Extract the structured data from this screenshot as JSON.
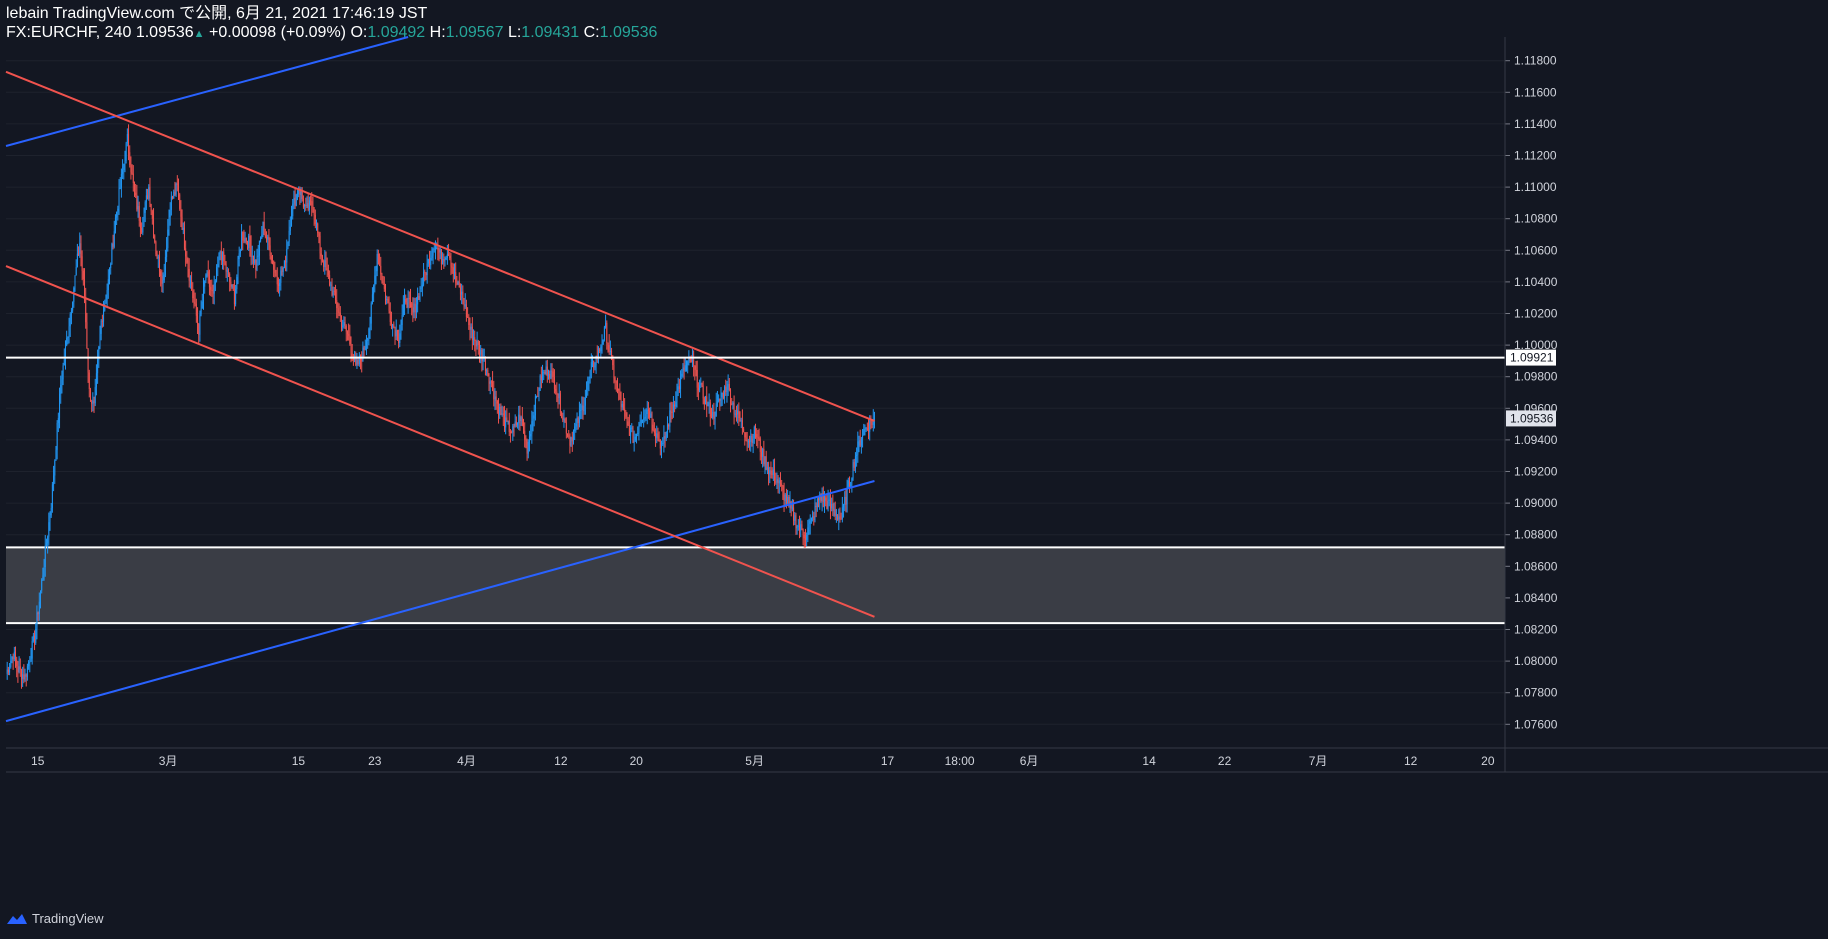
{
  "header": {
    "line1": "lebain TradingView.com で公開, 6月 21, 2021 17:46:19 JST",
    "symbol": "FX:EURCHF, 240",
    "price": "1.09536",
    "change": "+0.00098 (+0.09%)",
    "o_label": "O:",
    "o_val": "1.09492",
    "h_label": "H:",
    "h_val": "1.09567",
    "l_label": "L:",
    "l_val": "1.09431",
    "c_label": "C:",
    "c_val": "1.09536"
  },
  "footer": {
    "brand": "TradingView",
    "logo_icon": "tradingview-logo-icon"
  },
  "colors": {
    "background": "#131722",
    "up": "#2196f3",
    "down": "#ef5350",
    "blue_line": "#2962ff",
    "red_line": "#f0534e",
    "grid": "#1e222d"
  },
  "chart_data": {
    "type": "candlestick",
    "symbol": "FX:EURCHF",
    "interval": "240",
    "ylim": [
      1.0745,
      1.1195
    ],
    "x_ticks": [
      "15",
      "3月",
      "15",
      "23",
      "4月",
      "12",
      "20",
      "5月",
      "17",
      "18:00",
      "6月",
      "14",
      "22",
      "7月",
      "12",
      "20"
    ],
    "y_ticks": [
      "1.11800",
      "1.11600",
      "1.11400",
      "1.11200",
      "1.11000",
      "1.10800",
      "1.10600",
      "1.10400",
      "1.10200",
      "1.10000",
      "1.09800",
      "1.09600",
      "1.09400",
      "1.09200",
      "1.09000",
      "1.08800",
      "1.08600",
      "1.08400",
      "1.08200",
      "1.08000",
      "1.07800",
      "1.07600"
    ],
    "price_labels": [
      {
        "text": "1.09921",
        "value": 1.09921,
        "style": "white"
      },
      {
        "text": "1.09536",
        "value": 1.09536,
        "style": "last"
      }
    ],
    "path_points": [
      [
        0,
        1.0792
      ],
      [
        6,
        1.0805
      ],
      [
        10,
        1.0795
      ],
      [
        16,
        1.079
      ],
      [
        24,
        1.0815
      ],
      [
        30,
        1.085
      ],
      [
        38,
        1.09
      ],
      [
        46,
        1.0975
      ],
      [
        54,
        1.102
      ],
      [
        62,
        1.1065
      ],
      [
        66,
        1.103
      ],
      [
        70,
        1.097
      ],
      [
        74,
        1.096
      ],
      [
        80,
        1.1015
      ],
      [
        86,
        1.104
      ],
      [
        92,
        1.108
      ],
      [
        98,
        1.111
      ],
      [
        102,
        1.113
      ],
      [
        108,
        1.1095
      ],
      [
        114,
        1.1075
      ],
      [
        120,
        1.11
      ],
      [
        126,
        1.106
      ],
      [
        132,
        1.104
      ],
      [
        138,
        1.109
      ],
      [
        144,
        1.11
      ],
      [
        150,
        1.1065
      ],
      [
        156,
        1.1035
      ],
      [
        162,
        1.101
      ],
      [
        168,
        1.1045
      ],
      [
        174,
        1.103
      ],
      [
        180,
        1.106
      ],
      [
        186,
        1.1045
      ],
      [
        192,
        1.103
      ],
      [
        198,
        1.107
      ],
      [
        204,
        1.1065
      ],
      [
        210,
        1.105
      ],
      [
        216,
        1.1075
      ],
      [
        222,
        1.106
      ],
      [
        228,
        1.104
      ],
      [
        234,
        1.105
      ],
      [
        240,
        1.1085
      ],
      [
        246,
        1.11
      ],
      [
        252,
        1.1085
      ],
      [
        258,
        1.109
      ],
      [
        264,
        1.106
      ],
      [
        270,
        1.1045
      ],
      [
        276,
        1.103
      ],
      [
        282,
        1.1015
      ],
      [
        288,
        1.1005
      ],
      [
        294,
        1.0985
      ],
      [
        300,
        1.0995
      ],
      [
        306,
        1.1015
      ],
      [
        312,
        1.1058
      ],
      [
        318,
        1.1035
      ],
      [
        324,
        1.1015
      ],
      [
        330,
        1.1005
      ],
      [
        336,
        1.103
      ],
      [
        342,
        1.102
      ],
      [
        348,
        1.1035
      ],
      [
        354,
        1.105
      ],
      [
        360,
        1.1065
      ],
      [
        366,
        1.1055
      ],
      [
        372,
        1.106
      ],
      [
        378,
        1.104
      ],
      [
        384,
        1.103
      ],
      [
        390,
        1.101
      ],
      [
        396,
        1.1
      ],
      [
        402,
        1.099
      ],
      [
        408,
        1.0975
      ],
      [
        414,
        1.096
      ],
      [
        420,
        1.095
      ],
      [
        426,
        1.0945
      ],
      [
        432,
        1.0955
      ],
      [
        438,
        1.0935
      ],
      [
        444,
        1.096
      ],
      [
        450,
        1.098
      ],
      [
        456,
        1.0985
      ],
      [
        462,
        1.0975
      ],
      [
        468,
        1.0955
      ],
      [
        474,
        1.094
      ],
      [
        480,
        1.095
      ],
      [
        486,
        1.0965
      ],
      [
        492,
        1.0985
      ],
      [
        498,
        1.0995
      ],
      [
        504,
        1.101
      ],
      [
        510,
        1.0985
      ],
      [
        516,
        1.0965
      ],
      [
        522,
        1.095
      ],
      [
        528,
        1.094
      ],
      [
        534,
        1.0955
      ],
      [
        540,
        1.096
      ],
      [
        546,
        1.0945
      ],
      [
        552,
        1.0935
      ],
      [
        558,
        1.0955
      ],
      [
        564,
        1.097
      ],
      [
        570,
        1.0985
      ],
      [
        576,
        1.099
      ],
      [
        582,
        1.0975
      ],
      [
        588,
        1.0965
      ],
      [
        594,
        1.0955
      ],
      [
        600,
        1.0965
      ],
      [
        606,
        1.0975
      ],
      [
        612,
        1.096
      ],
      [
        618,
        1.095
      ],
      [
        624,
        1.094
      ],
      [
        630,
        1.0945
      ],
      [
        636,
        1.093
      ],
      [
        642,
        1.092
      ],
      [
        648,
        1.0915
      ],
      [
        654,
        1.0905
      ],
      [
        660,
        1.0895
      ],
      [
        666,
        1.0885
      ],
      [
        672,
        1.088
      ],
      [
        678,
        1.089
      ],
      [
        684,
        1.0905
      ],
      [
        690,
        1.09
      ],
      [
        696,
        1.0895
      ],
      [
        702,
        1.089
      ],
      [
        708,
        1.091
      ],
      [
        714,
        1.093
      ],
      [
        720,
        1.0945
      ],
      [
        726,
        1.095
      ],
      [
        730,
        1.09536
      ]
    ],
    "drawings": [
      {
        "kind": "trendline",
        "color": "blue",
        "from": [
          0,
          1.1126
        ],
        "to": [
          338,
          1.1195
        ]
      },
      {
        "kind": "trendline",
        "color": "blue",
        "from": [
          0,
          1.0762
        ],
        "to": [
          730,
          1.0914
        ]
      },
      {
        "kind": "trendline",
        "color": "red",
        "from": [
          0,
          1.1173
        ],
        "to": [
          730,
          1.0952
        ]
      },
      {
        "kind": "trendline",
        "color": "red",
        "from": [
          0,
          1.105
        ],
        "to": [
          730,
          1.0828
        ]
      },
      {
        "kind": "horizontal",
        "color": "white",
        "value": 1.09921
      },
      {
        "kind": "zone",
        "color": "gray",
        "from": 1.0824,
        "to": 1.0872
      }
    ]
  }
}
